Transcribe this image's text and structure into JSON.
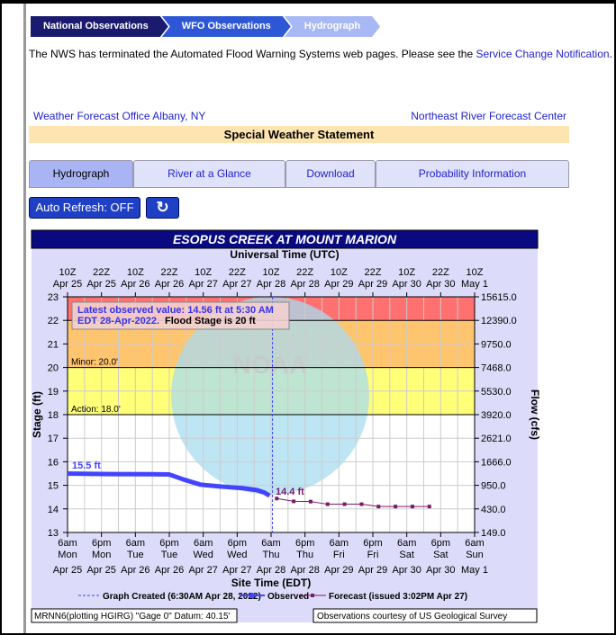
{
  "breadcrumbs": [
    "National Observations",
    "WFO Observations",
    "Hydrograph"
  ],
  "notice": {
    "text": "The NWS has terminated the Automated Flood Warning Systems web pages. Please see the ",
    "link": "Service Change Notification",
    "end": "."
  },
  "links": {
    "wfo": "Weather Forecast Office Albany, NY",
    "rfc": "Northeast River Forecast Center"
  },
  "statement": "Special Weather Statement",
  "tabs": [
    "Hydrograph",
    "River at a Glance",
    "Download",
    "Probability Information"
  ],
  "auto_refresh": "Auto Refresh: OFF",
  "refresh_icon": "refresh-icon",
  "footer": {
    "left": "MRNN6(plotting HGIRG) \"Gage 0\" Datum: 40.15'",
    "right": "Observations courtesy of US Geological Survey"
  },
  "chart_data": {
    "type": "line",
    "title": "ESOPUS CREEK AT MOUNT MARION",
    "top_axis_label": "Universal Time (UTC)",
    "xlabel": "Site Time (EDT)",
    "ylabel": "Stage (ft)",
    "y2label": "Flow (cfs)",
    "ylim": [
      13,
      23
    ],
    "xlim": [
      "2022-04-25 06:00",
      "2022-05-01 06:00"
    ],
    "grid": true,
    "top_ticks": [
      [
        "10Z",
        "Apr 25"
      ],
      [
        "22Z",
        "Apr 25"
      ],
      [
        "10Z",
        "Apr 26"
      ],
      [
        "22Z",
        "Apr 26"
      ],
      [
        "10Z",
        "Apr 27"
      ],
      [
        "22Z",
        "Apr 27"
      ],
      [
        "10Z",
        "Apr 28"
      ],
      [
        "22Z",
        "Apr 28"
      ],
      [
        "10Z",
        "Apr 29"
      ],
      [
        "22Z",
        "Apr 29"
      ],
      [
        "10Z",
        "Apr 30"
      ],
      [
        "22Z",
        "Apr 30"
      ],
      [
        "10Z",
        "May  1"
      ]
    ],
    "bottom_ticks": [
      [
        "6am",
        "Mon",
        "Apr 25"
      ],
      [
        "6pm",
        "Mon",
        "Apr 25"
      ],
      [
        "6am",
        "Tue",
        "Apr 26"
      ],
      [
        "6pm",
        "Tue",
        "Apr 26"
      ],
      [
        "6am",
        "Wed",
        "Apr 27"
      ],
      [
        "6pm",
        "Wed",
        "Apr 27"
      ],
      [
        "6am",
        "Thu",
        "Apr 28"
      ],
      [
        "6pm",
        "Thu",
        "Apr 28"
      ],
      [
        "6am",
        "Fri",
        "Apr 29"
      ],
      [
        "6pm",
        "Fri",
        "Apr 29"
      ],
      [
        "6am",
        "Sat",
        "Apr 30"
      ],
      [
        "6pm",
        "Sat",
        "Apr 30"
      ],
      [
        "6am",
        "Sun",
        "May 1"
      ]
    ],
    "y_ticks": [
      23,
      22,
      21,
      20,
      19,
      18,
      17,
      16,
      15,
      14,
      13
    ],
    "y2_ticks": [
      "15615.0",
      "12390.0",
      "9750.0",
      "7468.0",
      "5530.0",
      "3920.0",
      "2621.0",
      "1666.0",
      "950.0",
      "430.0",
      "149.0"
    ],
    "bands": [
      {
        "from": 22,
        "to": 23,
        "color": "#ff7070",
        "label": ""
      },
      {
        "from": 20,
        "to": 22,
        "color": "#ffc46e",
        "label": "Minor: 20.0'"
      },
      {
        "from": 18,
        "to": 20,
        "color": "#ffff78",
        "label": "Action: 18.0'"
      }
    ],
    "latest": {
      "line1": "Latest observed value: 14.56 ft at 5:30 AM",
      "line2a": "EDT 28-Apr-2022.",
      "line2b": " Flood Stage is 20 ft"
    },
    "graph_created": "2022-04-28 06:30",
    "series": [
      {
        "name": "Observed",
        "color": "#4444ff",
        "label": "15.5 ft",
        "points": [
          [
            "2022-04-25 06:00",
            15.5
          ],
          [
            "2022-04-25 18:00",
            15.48
          ],
          [
            "2022-04-26 12:00",
            15.47
          ],
          [
            "2022-04-26 18:00",
            15.46
          ],
          [
            "2022-04-26 23:00",
            15.25
          ],
          [
            "2022-04-27 05:00",
            15.03
          ],
          [
            "2022-04-27 12:00",
            14.95
          ],
          [
            "2022-04-27 20:00",
            14.88
          ],
          [
            "2022-04-28 01:00",
            14.8
          ],
          [
            "2022-04-28 03:30",
            14.7
          ],
          [
            "2022-04-28 05:30",
            14.56
          ]
        ]
      },
      {
        "name": "Forecast",
        "color": "#7a1a6a",
        "label": "14.4 ft",
        "points": [
          [
            "2022-04-28 08:00",
            14.44
          ],
          [
            "2022-04-28 14:00",
            14.32
          ],
          [
            "2022-04-28 20:00",
            14.31
          ],
          [
            "2022-04-29 02:00",
            14.2
          ],
          [
            "2022-04-29 08:00",
            14.2
          ],
          [
            "2022-04-29 14:00",
            14.2
          ],
          [
            "2022-04-29 20:00",
            14.1
          ],
          [
            "2022-04-30 02:00",
            14.1
          ],
          [
            "2022-04-30 08:00",
            14.1
          ],
          [
            "2022-04-30 14:00",
            14.1
          ]
        ]
      }
    ],
    "legend": {
      "created": "Graph Created (6:30AM Apr 28, 2022)",
      "observed": "Observed",
      "forecast": "Forecast (issued 3:02PM Apr 27)"
    }
  }
}
